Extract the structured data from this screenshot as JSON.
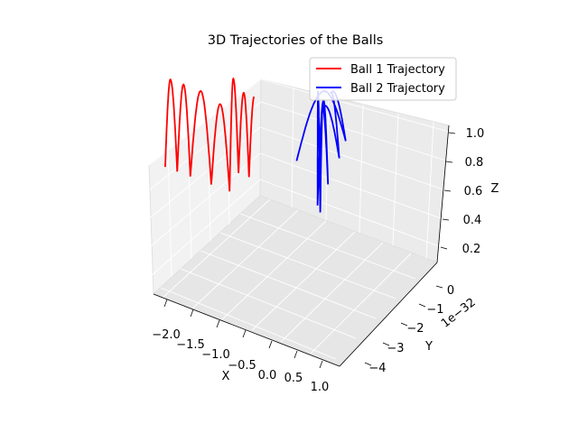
{
  "chart_data": {
    "type": "line3d",
    "title": "3D Trajectories of the Balls",
    "xlabel": "X",
    "ylabel": "Y",
    "zlabel": "Z",
    "y_offset_label": "1e−32",
    "x_ticks": [
      "−2.0",
      "−1.5",
      "−1.0",
      "−0.5",
      "0.0",
      "0.5",
      "1.0"
    ],
    "y_ticks": [
      "0",
      "−1",
      "−2",
      "−3",
      "−4"
    ],
    "z_ticks": [
      "0.2",
      "0.4",
      "0.6",
      "0.8",
      "1.0"
    ],
    "legend_position": "top-right",
    "colors": {
      "ball1": "#ff0000",
      "ball2": "#0000ff"
    },
    "series": [
      {
        "name": "Ball 1 Trajectory",
        "color": "#ff0000",
        "points": [
          {
            "x": -1.95,
            "y": 0.0,
            "z": 0.2
          },
          {
            "x": -1.85,
            "y": 0.0,
            "z": 0.82
          },
          {
            "x": -1.72,
            "y": 0.0,
            "z": 0.2
          },
          {
            "x": -1.6,
            "y": 0.0,
            "z": 0.82
          },
          {
            "x": -1.47,
            "y": 0.0,
            "z": 0.2
          },
          {
            "x": -1.27,
            "y": 0.0,
            "z": 0.82
          },
          {
            "x": -1.07,
            "y": 0.0,
            "z": 0.2
          },
          {
            "x": -0.9,
            "y": 0.0,
            "z": 0.78
          },
          {
            "x": -0.72,
            "y": 0.0,
            "z": 0.2
          },
          {
            "x": -0.65,
            "y": 0.0,
            "z": 0.99
          },
          {
            "x": -0.55,
            "y": 0.0,
            "z": 0.35
          },
          {
            "x": -0.45,
            "y": 0.0,
            "z": 0.92
          },
          {
            "x": -0.35,
            "y": 0.0,
            "z": 0.35
          },
          {
            "x": -0.25,
            "y": 0.0,
            "z": 0.92
          }
        ]
      },
      {
        "name": "Ball 2 Trajectory",
        "color": "#0000ff",
        "points": [
          {
            "x": -0.2,
            "y": -2.0,
            "z": 0.22
          },
          {
            "x": -0.1,
            "y": -3.0,
            "z": 0.58
          },
          {
            "x": -0.02,
            "y": -4.0,
            "z": 0.12
          },
          {
            "x": 0.08,
            "y": -3.0,
            "z": 0.6
          },
          {
            "x": 0.16,
            "y": -3.2,
            "z": 0.13
          },
          {
            "x": 0.3,
            "y": -2.0,
            "z": 0.66
          },
          {
            "x": 0.4,
            "y": -2.0,
            "z": 0.14
          },
          {
            "x": 0.5,
            "y": -1.5,
            "z": 0.8
          },
          {
            "x": 0.58,
            "y": -1.0,
            "z": 0.15
          },
          {
            "x": 0.7,
            "y": -0.7,
            "z": 1.0
          },
          {
            "x": 0.82,
            "y": -0.5,
            "z": 0.2
          },
          {
            "x": 0.95,
            "y": -0.3,
            "z": 1.0
          }
        ]
      }
    ]
  }
}
